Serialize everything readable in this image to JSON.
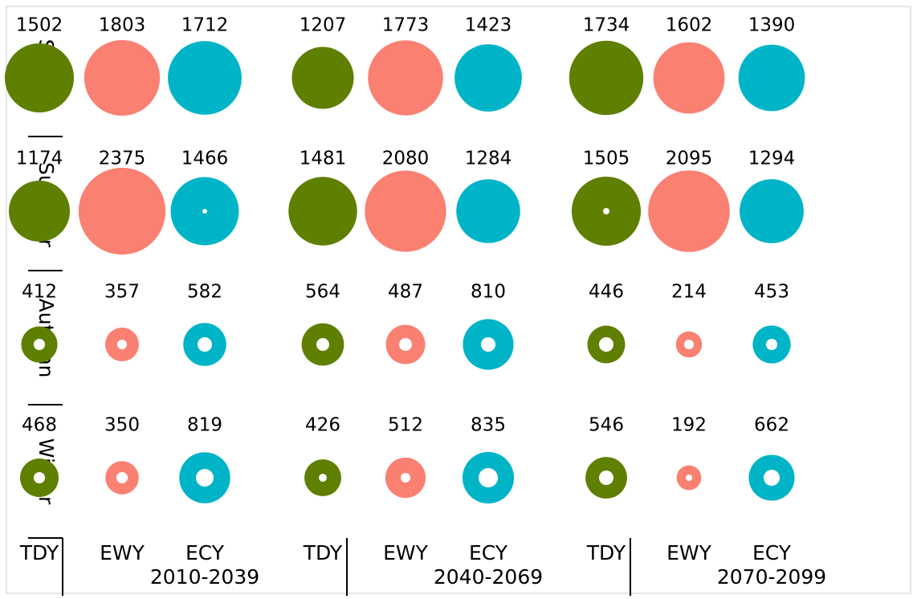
{
  "chart_data": {
    "type": "bubble-grid",
    "rows": [
      "Spring",
      "Summer",
      "Autumn",
      "Winter"
    ],
    "groups": [
      "2010-2039",
      "2040-2069",
      "2070-2099"
    ],
    "series": [
      {
        "name": "TDY",
        "color": "#5f7f00",
        "values": [
          [
            1502,
            1207,
            1734
          ],
          [
            1174,
            1481,
            1505
          ],
          [
            412,
            564,
            446
          ],
          [
            468,
            426,
            546
          ]
        ],
        "hole_values": [
          [
            0,
            0,
            0
          ],
          [
            0,
            0,
            13
          ],
          [
            40,
            52,
            66
          ],
          [
            40,
            20,
            66
          ]
        ]
      },
      {
        "name": "EWY",
        "color": "#fa8072",
        "values": [
          [
            1803,
            1773,
            1602
          ],
          [
            2375,
            2080,
            2095
          ],
          [
            357,
            487,
            214
          ],
          [
            350,
            512,
            192
          ]
        ],
        "hole_values": [
          [
            0,
            0,
            0
          ],
          [
            0,
            0,
            0
          ],
          [
            29,
            52,
            29
          ],
          [
            40,
            29,
            13
          ]
        ]
      },
      {
        "name": "ECY",
        "color": "#00b4c8",
        "values": [
          [
            1712,
            1423,
            1390
          ],
          [
            1466,
            1284,
            1294
          ],
          [
            582,
            810,
            453
          ],
          [
            819,
            835,
            662
          ]
        ],
        "hole_values": [
          [
            0,
            0,
            0
          ],
          [
            7,
            0,
            0
          ],
          [
            66,
            66,
            40
          ],
          [
            98,
            117,
            81
          ]
        ]
      }
    ]
  }
}
